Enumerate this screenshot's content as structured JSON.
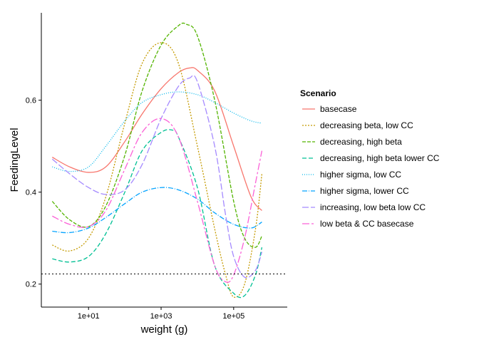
{
  "chart_data": {
    "type": "line",
    "xlabel": "weight (g)",
    "ylabel": "FeedingLevel",
    "x_scale": "log10",
    "xlim": [
      0.5,
      3000000
    ],
    "ylim": [
      0.15,
      0.79
    ],
    "x_ticks": [
      10,
      1000,
      100000
    ],
    "x_tick_labels": [
      "1e+01",
      "1e+03",
      "1e+05"
    ],
    "y_ticks": [
      0.2,
      0.4,
      0.6
    ],
    "y_tick_labels": [
      "0.2",
      "0.4",
      "0.6"
    ],
    "grid": false,
    "hline": 0.222,
    "legend": {
      "title": "Scenario",
      "position": "right"
    },
    "series": [
      {
        "name": "basecase",
        "color": "#F8766D",
        "dash": "",
        "x": [
          1,
          3,
          10,
          30,
          100,
          300,
          1000,
          3000,
          6000,
          10000,
          30000,
          100000,
          300000,
          600000
        ],
        "y": [
          0.476,
          0.455,
          0.443,
          0.455,
          0.51,
          0.57,
          0.625,
          0.66,
          0.67,
          0.665,
          0.62,
          0.5,
          0.39,
          0.36
        ]
      },
      {
        "name": "decreasing beta, low CC",
        "color": "#C49A00",
        "dash": "2,2",
        "x": [
          1,
          3,
          10,
          30,
          100,
          300,
          1000,
          3000,
          10000,
          30000,
          60000,
          100000,
          200000,
          400000,
          600000
        ],
        "y": [
          0.285,
          0.272,
          0.3,
          0.39,
          0.55,
          0.68,
          0.725,
          0.68,
          0.5,
          0.32,
          0.22,
          0.172,
          0.2,
          0.32,
          0.44
        ]
      },
      {
        "name": "decreasing, high beta",
        "color": "#53B400",
        "dash": "5,2",
        "x": [
          1,
          3,
          10,
          30,
          100,
          300,
          1000,
          3000,
          5000,
          10000,
          30000,
          100000,
          200000,
          400000,
          600000
        ],
        "y": [
          0.38,
          0.34,
          0.325,
          0.37,
          0.48,
          0.62,
          0.72,
          0.762,
          0.765,
          0.74,
          0.6,
          0.38,
          0.3,
          0.28,
          0.305
        ]
      },
      {
        "name": "decreasing, high beta lower CC",
        "color": "#00C094",
        "dash": "6,3",
        "x": [
          1,
          3,
          10,
          30,
          100,
          300,
          1000,
          2000,
          3000,
          10000,
          30000,
          100000,
          200000,
          400000,
          600000
        ],
        "y": [
          0.255,
          0.248,
          0.26,
          0.31,
          0.4,
          0.49,
          0.53,
          0.535,
          0.52,
          0.41,
          0.24,
          0.18,
          0.175,
          0.22,
          0.28
        ]
      },
      {
        "name": "higher sigma, low CC",
        "color": "#00B6EB",
        "dash": "1,2",
        "x": [
          1,
          3,
          10,
          30,
          100,
          300,
          1000,
          3000,
          10000,
          30000,
          100000,
          300000,
          600000
        ],
        "y": [
          0.455,
          0.445,
          0.455,
          0.5,
          0.555,
          0.595,
          0.612,
          0.618,
          0.612,
          0.595,
          0.572,
          0.555,
          0.55
        ]
      },
      {
        "name": "higher sigma, lower CC",
        "color": "#06A4FF",
        "dash": "7,2,1,2",
        "x": [
          1,
          3,
          10,
          30,
          100,
          300,
          1000,
          3000,
          10000,
          30000,
          100000,
          300000,
          600000
        ],
        "y": [
          0.315,
          0.312,
          0.322,
          0.345,
          0.375,
          0.4,
          0.41,
          0.405,
          0.385,
          0.355,
          0.33,
          0.322,
          0.335
        ]
      },
      {
        "name": "increasing, low beta low CC",
        "color": "#A58AFF",
        "dash": "9,3",
        "x": [
          1,
          3,
          10,
          30,
          100,
          300,
          1000,
          3000,
          6000,
          10000,
          30000,
          60000,
          100000,
          200000,
          400000,
          600000
        ],
        "y": [
          0.472,
          0.44,
          0.41,
          0.395,
          0.405,
          0.46,
          0.56,
          0.63,
          0.648,
          0.64,
          0.5,
          0.35,
          0.26,
          0.215,
          0.23,
          0.27
        ]
      },
      {
        "name": "low beta & CC basecase",
        "color": "#FB61D7",
        "dash": "10,3,3,3",
        "x": [
          1,
          3,
          10,
          30,
          100,
          300,
          1000,
          3000,
          10000,
          30000,
          60000,
          100000,
          200000,
          400000,
          600000
        ],
        "y": [
          0.348,
          0.33,
          0.325,
          0.36,
          0.45,
          0.53,
          0.56,
          0.52,
          0.38,
          0.24,
          0.205,
          0.22,
          0.3,
          0.42,
          0.49
        ]
      }
    ]
  }
}
